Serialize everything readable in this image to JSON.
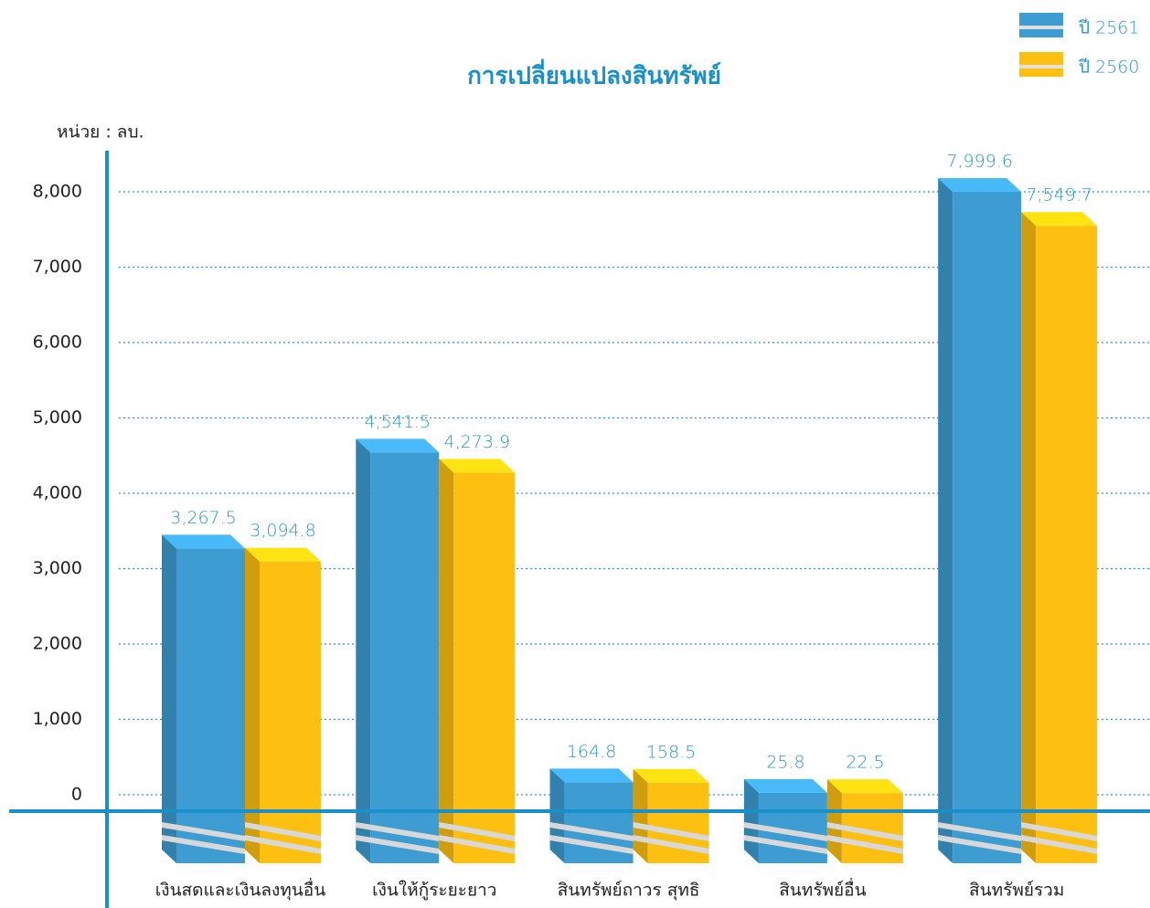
{
  "chart_data": {
    "type": "bar3d",
    "title": "การเปลี่ยนแปลงสินทรัพย์",
    "y_label": "หน่วย : ลบ.",
    "categories": [
      "เงินสดและเงินลงทุนอื่น",
      "เงินให้กู้ระยะยาว",
      "สินทรัพย์ถาวร สุทธิ",
      "สินทรัพย์อื่น",
      "สินทรัพย์รวม"
    ],
    "series": [
      {
        "name": "ปี 2561",
        "color": "#3d9dd3",
        "values": [
          3267.5,
          4541.5,
          164.8,
          25.8,
          7999.6
        ],
        "value_labels": [
          "3,267.5",
          "4,541.5",
          "164.8",
          "25.8",
          "7,999.6"
        ]
      },
      {
        "name": "ปี 2560",
        "color": "#fdc010",
        "values": [
          3094.8,
          4273.9,
          158.5,
          22.5,
          7549.7
        ],
        "value_labels": [
          "3,094.8",
          "4,273.9",
          "158.5",
          "22.5",
          "7,549.7"
        ]
      }
    ],
    "ylim": [
      0,
      8000
    ],
    "yticks": [
      0,
      {
        "value": 1000,
        "label": "1,000"
      },
      {
        "value": 2000,
        "label": "2,000"
      },
      {
        "value": 3000,
        "label": "3,000"
      },
      {
        "value": 4000,
        "label": "4,000"
      },
      {
        "value": 5000,
        "label": "5,000"
      },
      {
        "value": 6000,
        "label": "6,000"
      },
      {
        "value": 7000,
        "label": "7,000"
      },
      {
        "value": 8000,
        "label": "8,000"
      }
    ],
    "grid": true,
    "legend": "top-right"
  }
}
